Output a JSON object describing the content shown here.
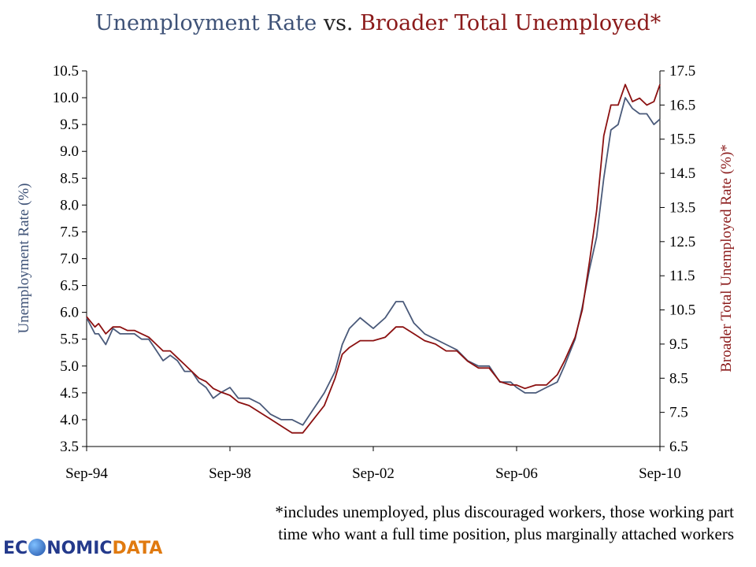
{
  "chart_data": {
    "type": "line",
    "title": {
      "part1": "Unemployment Rate",
      "vs": " vs. ",
      "part2": "Broader Total Unemployed*"
    },
    "ylabel_left": "Unemployment Rate (%)",
    "ylabel_right": "Broader Total Unemployed Rate (%)*",
    "ylim_left": [
      3.5,
      10.5
    ],
    "ylim_right": [
      6.5,
      17.5
    ],
    "yticks_left": [
      "3.5",
      "4.0",
      "4.5",
      "5.0",
      "5.5",
      "6.0",
      "6.5",
      "7.0",
      "7.5",
      "8.0",
      "8.5",
      "9.0",
      "9.5",
      "10.0",
      "10.5"
    ],
    "yticks_right": [
      "6.5",
      "7.5",
      "8.5",
      "9.5",
      "10.5",
      "11.5",
      "12.5",
      "13.5",
      "14.5",
      "15.5",
      "16.5",
      "17.5"
    ],
    "x_start": "1994-09",
    "x_end": "2010-09",
    "xticks": [
      {
        "label": "Sep-94",
        "year": 1994.667
      },
      {
        "label": "Sep-98",
        "year": 1998.667
      },
      {
        "label": "Sep-02",
        "year": 2002.667
      },
      {
        "label": "Sep-06",
        "year": 2006.667
      },
      {
        "label": "Sep-10",
        "year": 2010.667
      }
    ],
    "series": [
      {
        "name": "Unemployment Rate",
        "axis": "left",
        "color": "#4a5a7a",
        "points": [
          [
            1994.667,
            5.9
          ],
          [
            1994.9,
            5.6
          ],
          [
            1995.0,
            5.6
          ],
          [
            1995.2,
            5.4
          ],
          [
            1995.4,
            5.7
          ],
          [
            1995.6,
            5.6
          ],
          [
            1995.8,
            5.6
          ],
          [
            1996.0,
            5.6
          ],
          [
            1996.2,
            5.5
          ],
          [
            1996.4,
            5.5
          ],
          [
            1996.6,
            5.3
          ],
          [
            1996.8,
            5.1
          ],
          [
            1997.0,
            5.2
          ],
          [
            1997.2,
            5.1
          ],
          [
            1997.4,
            4.9
          ],
          [
            1997.6,
            4.9
          ],
          [
            1997.8,
            4.7
          ],
          [
            1998.0,
            4.6
          ],
          [
            1998.2,
            4.4
          ],
          [
            1998.4,
            4.5
          ],
          [
            1998.667,
            4.6
          ],
          [
            1998.9,
            4.4
          ],
          [
            1999.2,
            4.4
          ],
          [
            1999.5,
            4.3
          ],
          [
            1999.8,
            4.1
          ],
          [
            2000.1,
            4.0
          ],
          [
            2000.4,
            4.0
          ],
          [
            2000.7,
            3.9
          ],
          [
            2001.0,
            4.2
          ],
          [
            2001.3,
            4.5
          ],
          [
            2001.6,
            4.9
          ],
          [
            2001.8,
            5.4
          ],
          [
            2002.0,
            5.7
          ],
          [
            2002.3,
            5.9
          ],
          [
            2002.667,
            5.7
          ],
          [
            2003.0,
            5.9
          ],
          [
            2003.3,
            6.2
          ],
          [
            2003.5,
            6.2
          ],
          [
            2003.8,
            5.8
          ],
          [
            2004.1,
            5.6
          ],
          [
            2004.4,
            5.5
          ],
          [
            2004.7,
            5.4
          ],
          [
            2005.0,
            5.3
          ],
          [
            2005.3,
            5.1
          ],
          [
            2005.6,
            5.0
          ],
          [
            2005.9,
            5.0
          ],
          [
            2006.2,
            4.7
          ],
          [
            2006.5,
            4.7
          ],
          [
            2006.667,
            4.6
          ],
          [
            2006.9,
            4.5
          ],
          [
            2007.2,
            4.5
          ],
          [
            2007.5,
            4.6
          ],
          [
            2007.8,
            4.7
          ],
          [
            2008.0,
            5.0
          ],
          [
            2008.3,
            5.5
          ],
          [
            2008.5,
            6.1
          ],
          [
            2008.7,
            6.8
          ],
          [
            2008.9,
            7.4
          ],
          [
            2009.1,
            8.5
          ],
          [
            2009.3,
            9.4
          ],
          [
            2009.5,
            9.5
          ],
          [
            2009.7,
            10.0
          ],
          [
            2009.9,
            9.8
          ],
          [
            2010.1,
            9.7
          ],
          [
            2010.3,
            9.7
          ],
          [
            2010.5,
            9.5
          ],
          [
            2010.667,
            9.6
          ]
        ]
      },
      {
        "name": "Broader Total Unemployed",
        "axis": "right",
        "color": "#8b1010",
        "points": [
          [
            1994.667,
            10.3
          ],
          [
            1994.9,
            10.0
          ],
          [
            1995.0,
            10.1
          ],
          [
            1995.2,
            9.8
          ],
          [
            1995.4,
            10.0
          ],
          [
            1995.6,
            10.0
          ],
          [
            1995.8,
            9.9
          ],
          [
            1996.0,
            9.9
          ],
          [
            1996.2,
            9.8
          ],
          [
            1996.4,
            9.7
          ],
          [
            1996.6,
            9.5
          ],
          [
            1996.8,
            9.3
          ],
          [
            1997.0,
            9.3
          ],
          [
            1997.2,
            9.1
          ],
          [
            1997.4,
            8.9
          ],
          [
            1997.6,
            8.7
          ],
          [
            1997.8,
            8.5
          ],
          [
            1998.0,
            8.4
          ],
          [
            1998.2,
            8.2
          ],
          [
            1998.4,
            8.1
          ],
          [
            1998.667,
            8.0
          ],
          [
            1998.9,
            7.8
          ],
          [
            1999.2,
            7.7
          ],
          [
            1999.5,
            7.5
          ],
          [
            1999.8,
            7.3
          ],
          [
            2000.1,
            7.1
          ],
          [
            2000.4,
            6.9
          ],
          [
            2000.7,
            6.9
          ],
          [
            2001.0,
            7.3
          ],
          [
            2001.3,
            7.7
          ],
          [
            2001.6,
            8.5
          ],
          [
            2001.8,
            9.2
          ],
          [
            2002.0,
            9.4
          ],
          [
            2002.3,
            9.6
          ],
          [
            2002.667,
            9.6
          ],
          [
            2003.0,
            9.7
          ],
          [
            2003.3,
            10.0
          ],
          [
            2003.5,
            10.0
          ],
          [
            2003.8,
            9.8
          ],
          [
            2004.1,
            9.6
          ],
          [
            2004.4,
            9.5
          ],
          [
            2004.7,
            9.3
          ],
          [
            2005.0,
            9.3
          ],
          [
            2005.3,
            9.0
          ],
          [
            2005.6,
            8.8
          ],
          [
            2005.9,
            8.8
          ],
          [
            2006.2,
            8.4
          ],
          [
            2006.5,
            8.3
          ],
          [
            2006.667,
            8.3
          ],
          [
            2006.9,
            8.2
          ],
          [
            2007.2,
            8.3
          ],
          [
            2007.5,
            8.3
          ],
          [
            2007.8,
            8.6
          ],
          [
            2008.0,
            9.0
          ],
          [
            2008.3,
            9.7
          ],
          [
            2008.5,
            10.5
          ],
          [
            2008.7,
            11.9
          ],
          [
            2008.9,
            13.4
          ],
          [
            2009.1,
            15.6
          ],
          [
            2009.3,
            16.5
          ],
          [
            2009.5,
            16.5
          ],
          [
            2009.7,
            17.1
          ],
          [
            2009.9,
            16.6
          ],
          [
            2010.1,
            16.7
          ],
          [
            2010.3,
            16.5
          ],
          [
            2010.5,
            16.6
          ],
          [
            2010.667,
            17.1
          ]
        ]
      }
    ]
  },
  "footnote": {
    "line1": "*includes unemployed, plus discouraged workers, those working part",
    "line2": "time who want a full time position, plus marginally attached workers"
  },
  "logo": {
    "econ": "EC",
    "nomic": "NOMIC",
    "data": "DATA"
  }
}
